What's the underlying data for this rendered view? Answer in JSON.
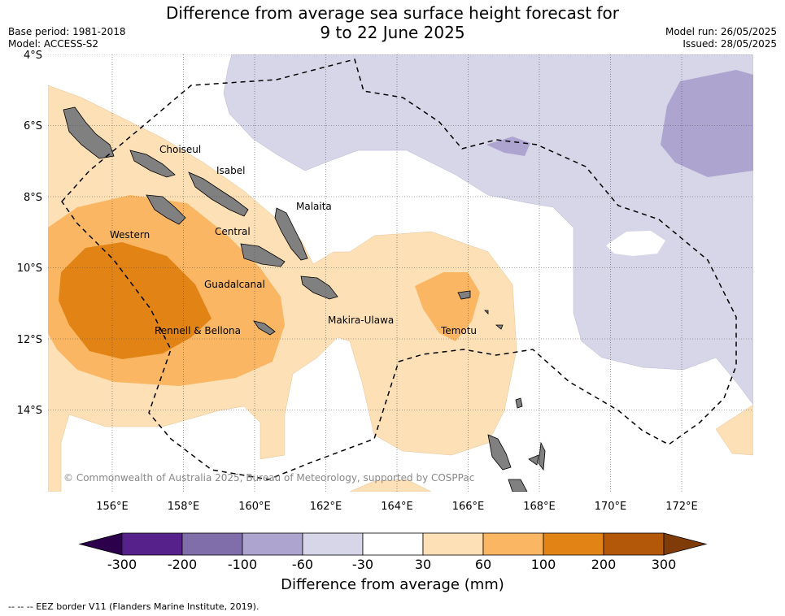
{
  "title_line1": "Difference from average sea surface height forecast for",
  "title_line2": "9 to 22 June 2025",
  "base_period": "Base period: 1981-2018",
  "model": "Model: ACCESS-S2",
  "model_run": "Model run: 26/05/2025",
  "issued": "Issued: 28/05/2025",
  "copyright": "© Commonwealth of Australia 2025, Bureau of Meteorology, supported by COSPPac",
  "latitude_labels": [
    "4°S",
    "6°S",
    "8°S",
    "10°S",
    "12°S",
    "14°S"
  ],
  "longitude_labels": [
    "156°E",
    "158°E",
    "160°E",
    "162°E",
    "164°E",
    "166°E",
    "168°E",
    "170°E",
    "172°E"
  ],
  "places": [
    "Choiseul",
    "Isabel",
    "Malaita",
    "Western",
    "Central",
    "Guadalcanal",
    "Rennell & Bellona",
    "Makira-Ulawa",
    "Temotu"
  ],
  "colorbar": {
    "label": "Difference from average (mm)",
    "ticks": [
      "-300",
      "-200",
      "-100",
      "-60",
      "-30",
      "30",
      "60",
      "100",
      "200",
      "300"
    ],
    "colors": [
      "#56218a",
      "#7f6eaa",
      "#ada4cf",
      "#d6d6e8",
      "#ffffff",
      "#fde0b6",
      "#fab662",
      "#e28316",
      "#b35808"
    ],
    "under_color": "#2d004b",
    "over_color": "#7f3b08"
  },
  "footnote": "--  --  -- EEZ border V11 (Flanders Marine Institute, 2019)."
}
